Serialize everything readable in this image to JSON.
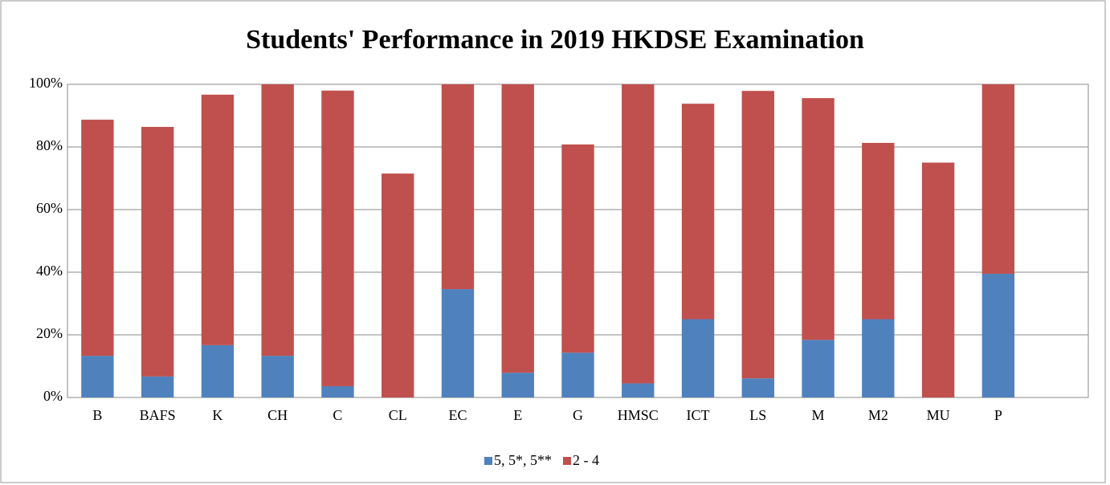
{
  "chart_data": {
    "type": "stacked_bar",
    "title": "Students' Performance in 2019 HKDSE Examination",
    "categories": [
      "B",
      "BAFS",
      "K",
      "CH",
      "C",
      "CL",
      "EC",
      "E",
      "G",
      "HMSC",
      "ICT",
      "LS",
      "M",
      "M2",
      "MU",
      "P",
      null
    ],
    "series": [
      {
        "name": "5, 5*, 5**",
        "color": "#4f81bd",
        "values": [
          13.3,
          6.7,
          16.7,
          13.3,
          3.6,
          0,
          34.6,
          7.9,
          14.3,
          4.5,
          25,
          6.1,
          18.4,
          25,
          0,
          39.5,
          null
        ]
      },
      {
        "name": "2 - 4",
        "color": "#c0504d",
        "values": [
          75.4,
          79.7,
          80.0,
          86.7,
          94.4,
          71.5,
          65.4,
          92.1,
          66.5,
          95.5,
          68.8,
          91.8,
          77.2,
          56.3,
          75,
          60.5,
          null
        ]
      }
    ],
    "ylim": [
      0,
      100
    ],
    "yticks": [
      {
        "value": 0,
        "label": "0%"
      },
      {
        "value": 20,
        "label": "20%"
      },
      {
        "value": 40,
        "label": "40%"
      },
      {
        "value": 60,
        "label": "60%"
      },
      {
        "value": 80,
        "label": "80%"
      },
      {
        "value": 100,
        "label": "100%"
      }
    ],
    "grid": true,
    "legend": "bottom"
  }
}
